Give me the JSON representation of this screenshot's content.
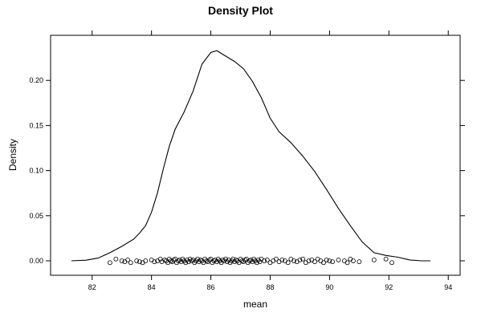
{
  "chart_data": {
    "type": "line",
    "title": "Density Plot",
    "xlabel": "mean",
    "ylabel": "Density",
    "xlim": [
      80.6,
      94.4
    ],
    "ylim": [
      -0.016,
      0.25
    ],
    "x_ticks": [
      82,
      84,
      86,
      88,
      90,
      92,
      94
    ],
    "x_tick_labels": [
      "82",
      "84",
      "86",
      "88",
      "90",
      "92",
      "94"
    ],
    "y_ticks": [
      0.0,
      0.05,
      0.1,
      0.15,
      0.2
    ],
    "y_tick_labels": [
      "0.00",
      "0.05",
      "0.10",
      "0.15",
      "0.20"
    ],
    "grid": false,
    "series": [
      {
        "x": [
          81.3,
          81.8,
          82.2,
          82.6,
          83.0,
          83.4,
          83.6,
          83.8,
          84.0,
          84.2,
          84.4,
          84.6,
          84.8,
          85.1,
          85.4,
          85.7,
          86.0,
          86.2,
          86.5,
          86.8,
          87.1,
          87.4,
          87.7,
          88.0,
          88.3,
          88.7,
          89.1,
          89.5,
          89.9,
          90.3,
          90.7,
          91.1,
          91.5,
          91.9,
          92.3,
          92.7,
          93.1,
          93.4
        ],
        "y": [
          0.0,
          0.0007,
          0.003,
          0.009,
          0.016,
          0.024,
          0.031,
          0.039,
          0.054,
          0.075,
          0.102,
          0.127,
          0.146,
          0.165,
          0.188,
          0.218,
          0.231,
          0.233,
          0.227,
          0.221,
          0.213,
          0.199,
          0.181,
          0.158,
          0.143,
          0.131,
          0.116,
          0.099,
          0.079,
          0.058,
          0.039,
          0.021,
          0.009,
          0.006,
          0.004,
          0.001,
          0.0,
          0.0
        ]
      }
    ],
    "rug": {
      "marker": "circle",
      "x": [
        82.6,
        82.8,
        83.0,
        83.1,
        83.2,
        83.3,
        83.5,
        83.6,
        83.7,
        83.8,
        84.0,
        84.1,
        84.2,
        84.3,
        84.35,
        84.45,
        84.5,
        84.55,
        84.6,
        84.65,
        84.7,
        84.75,
        84.8,
        84.85,
        84.9,
        84.95,
        85.0,
        85.05,
        85.1,
        85.15,
        85.2,
        85.25,
        85.3,
        85.35,
        85.4,
        85.45,
        85.5,
        85.55,
        85.6,
        85.65,
        85.7,
        85.75,
        85.8,
        85.85,
        85.9,
        85.95,
        86.0,
        86.05,
        86.1,
        86.15,
        86.2,
        86.25,
        86.3,
        86.35,
        86.4,
        86.45,
        86.5,
        86.55,
        86.6,
        86.65,
        86.7,
        86.75,
        86.8,
        86.85,
        86.9,
        86.95,
        87.0,
        87.05,
        87.1,
        87.15,
        87.2,
        87.25,
        87.3,
        87.35,
        87.4,
        87.45,
        87.5,
        87.55,
        87.6,
        87.65,
        87.7,
        87.8,
        87.9,
        88.0,
        88.1,
        88.2,
        88.3,
        88.4,
        88.5,
        88.6,
        88.7,
        88.8,
        88.9,
        89.0,
        89.1,
        89.2,
        89.3,
        89.4,
        89.5,
        89.6,
        89.7,
        89.8,
        89.9,
        90.0,
        90.1,
        90.3,
        90.5,
        90.6,
        90.7,
        90.8,
        91.0,
        91.5,
        91.9,
        92.1
      ],
      "y": [
        -0.002,
        0.002,
        0.0,
        -0.001,
        0.001,
        -0.002,
        0.0,
        -0.001,
        -0.002,
        0.0,
        0.001,
        -0.001,
        0.0,
        0.002,
        -0.001,
        0.001,
        0.0,
        -0.002,
        0.002,
        0.0,
        -0.001,
        0.001,
        0.002,
        -0.002,
        0.0,
        0.001,
        -0.001,
        0.002,
        0.0,
        -0.002,
        0.001,
        -0.001,
        0.002,
        0.0,
        0.001,
        -0.002,
        0.0,
        0.002,
        -0.001,
        0.001,
        0.0,
        -0.002,
        0.002,
        0.0,
        -0.001,
        0.001,
        0.002,
        -0.002,
        0.0,
        0.001,
        -0.001,
        0.002,
        0.0,
        -0.002,
        0.001,
        0.0,
        0.002,
        -0.001,
        0.001,
        -0.002,
        0.0,
        0.002,
        -0.001,
        0.001,
        0.0,
        -0.002,
        0.002,
        0.0,
        -0.001,
        0.001,
        0.002,
        -0.002,
        0.0,
        0.001,
        -0.001,
        0.002,
        0.0,
        -0.002,
        0.001,
        -0.001,
        0.002,
        0.0,
        0.001,
        -0.002,
        0.0,
        0.002,
        -0.001,
        0.001,
        0.0,
        -0.002,
        0.002,
        0.0,
        -0.001,
        0.001,
        0.002,
        -0.002,
        0.0,
        0.001,
        -0.001,
        0.002,
        0.0,
        -0.002,
        0.001,
        0.0,
        -0.001,
        0.001,
        0.0,
        -0.002,
        0.002,
        0.0,
        -0.001,
        0.001,
        0.002,
        -0.002
      ]
    }
  }
}
